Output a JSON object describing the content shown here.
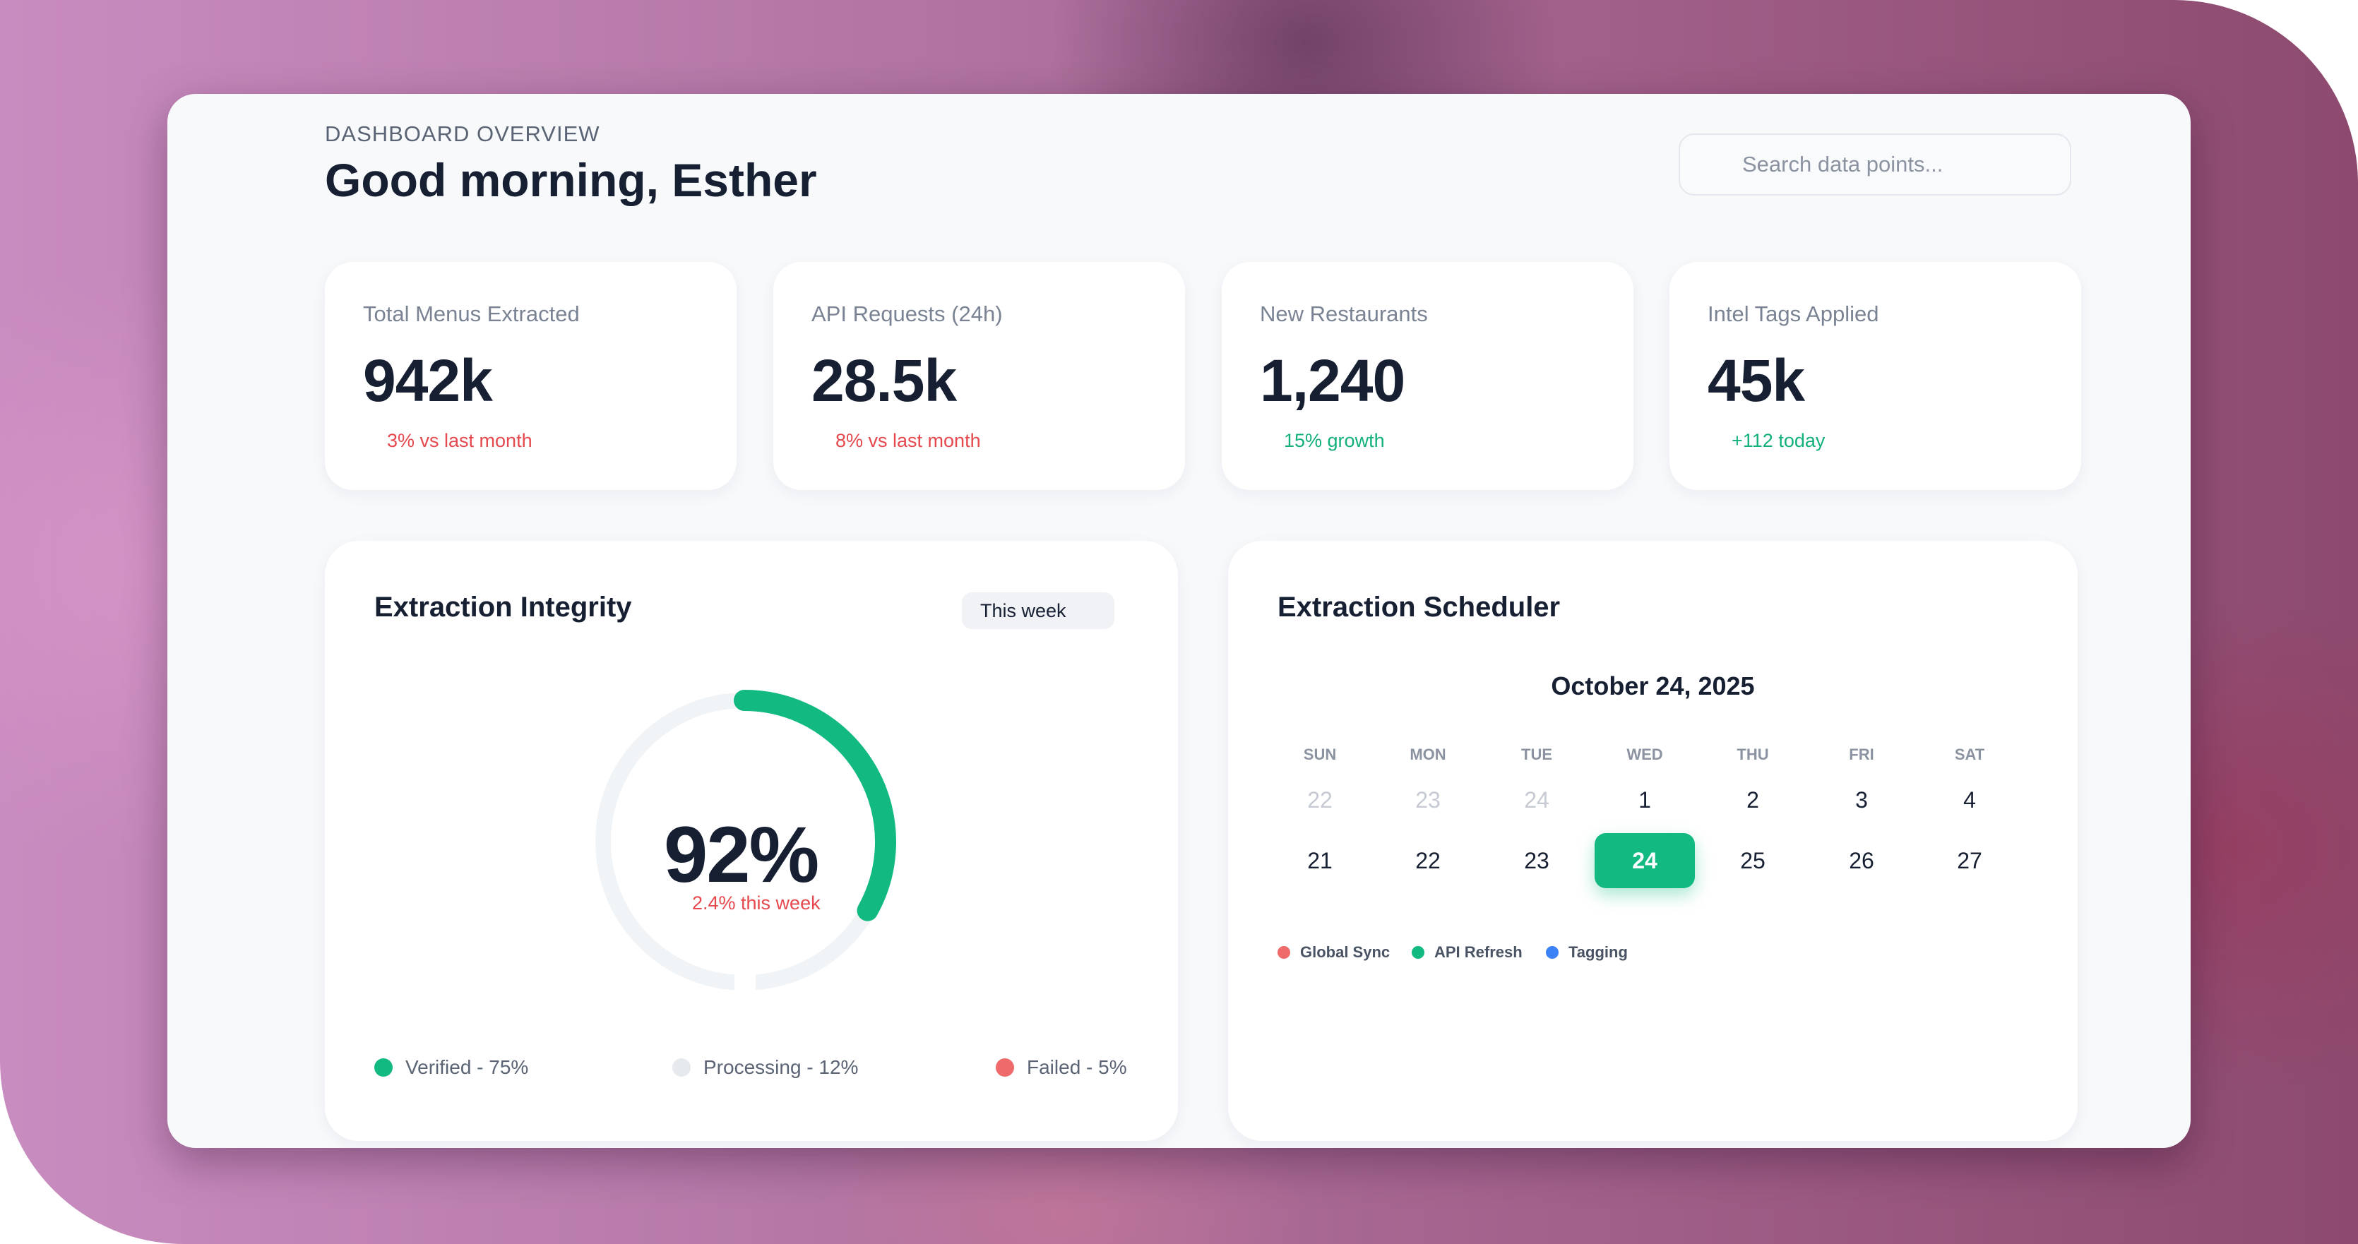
{
  "header": {
    "eyebrow": "DASHBOARD OVERVIEW",
    "greeting": "Good morning, Esther",
    "search_placeholder": "Search data points..."
  },
  "stats": [
    {
      "label": "Total Menus Extracted",
      "value": "942k",
      "change": "3% vs last month",
      "trend": "negative"
    },
    {
      "label": "API Requests (24h)",
      "value": "28.5k",
      "change": "8% vs last month",
      "trend": "negative"
    },
    {
      "label": "New Restaurants",
      "value": "1,240",
      "change": "15% growth",
      "trend": "positive"
    },
    {
      "label": "Intel Tags Applied",
      "value": "45k",
      "change": "+112 today",
      "trend": "positive"
    }
  ],
  "integrity": {
    "title": "Extraction Integrity",
    "range_label": "This week",
    "value_text": "92%",
    "value_fraction": 0.92,
    "sub_text": "2.4% this week",
    "legend": [
      {
        "label": "Verified - 75%",
        "color": "#12b981"
      },
      {
        "label": "Processing - 12%",
        "color": "#e6e9ee"
      },
      {
        "label": "Failed - 5%",
        "color": "#ef6b6b"
      }
    ]
  },
  "scheduler": {
    "title": "Extraction Scheduler",
    "month_label": "October 24, 2025",
    "weekdays": [
      "SUN",
      "MON",
      "TUE",
      "WED",
      "THU",
      "FRI",
      "SAT"
    ],
    "weeks": [
      [
        "22",
        "23",
        "24",
        "1",
        "2",
        "3",
        "4"
      ],
      [
        "21",
        "22",
        "23",
        "24",
        "25",
        "26",
        "27"
      ]
    ],
    "legend": [
      {
        "label": "Global Sync",
        "color": "#ef6b6b"
      },
      {
        "label": "API Refresh",
        "color": "#12b981"
      },
      {
        "label": "Tagging",
        "color": "#3b82f6"
      }
    ]
  },
  "colors": {
    "accent": "#12b981",
    "negative": "#e5484d",
    "positive": "#12b07b",
    "text": "#172033"
  }
}
